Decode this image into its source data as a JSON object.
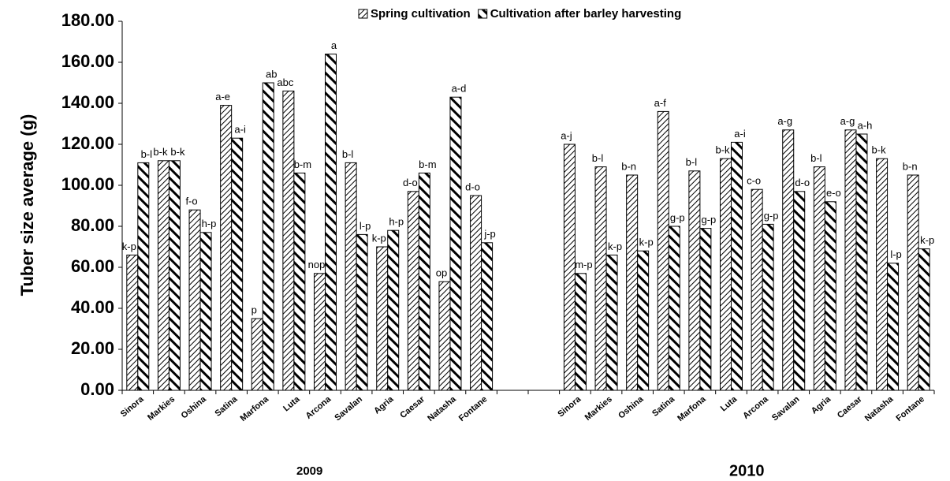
{
  "chart_data": {
    "type": "bar",
    "legend_title": null,
    "y_label": "Tuber size average (g)",
    "group_labels": [
      "2009",
      "2010"
    ],
    "categories": [
      "Sinora",
      "Markies",
      "Oshina",
      "Satina",
      "Marfona",
      "Luta",
      "Arcona",
      "Savalan",
      "Agria",
      "Caesar",
      "Natasha",
      "Fontane",
      null,
      null,
      "Sinora",
      "Markies",
      "Oshina",
      "Satina",
      "Marfona",
      "Luta",
      "Arcona",
      "Savalan",
      "Agria",
      "Caesar",
      "Natasha",
      "Fontane"
    ],
    "series": [
      {
        "name": "Spring cultivation",
        "color": "#000000",
        "values": [
          66,
          112,
          88,
          139,
          35,
          146,
          57,
          111,
          70,
          97,
          53,
          95,
          null,
          null,
          120,
          109,
          105,
          136,
          107,
          113,
          98,
          127,
          109,
          127,
          113,
          105
        ],
        "significance_labels": [
          "k-p",
          "b-k",
          "f-o",
          "a-e",
          "p",
          "abc",
          "nop",
          "b-l",
          "k-p",
          "d-o",
          "op",
          "d-o",
          null,
          null,
          "a-j",
          "b-l",
          "b-n",
          "a-f",
          "b-l",
          "b-k",
          "c-o",
          "a-g",
          "b-l",
          "a-g",
          "b-k",
          "b-n"
        ]
      },
      {
        "name": "Cultivation after barley harvesting",
        "color": "#000000",
        "values": [
          111,
          112,
          77,
          123,
          150,
          106,
          164,
          76,
          78,
          106,
          143,
          72,
          null,
          null,
          57,
          66,
          68,
          80,
          79,
          121,
          81,
          97,
          92,
          125,
          62,
          69
        ],
        "significance_labels": [
          "b-l",
          "b-k",
          "h-p",
          "a-i",
          "ab",
          "b-m",
          "a",
          "l-p",
          "h-p",
          "b-m",
          "a-d",
          "j-p",
          null,
          null,
          "m-p",
          "k-p",
          "k-p",
          "g-p",
          "g-p",
          "a-i",
          "g-p",
          "d-o",
          "e-o",
          "a-h",
          "l-p",
          "k-p"
        ]
      }
    ],
    "ylim": [
      0,
      180
    ],
    "yticks": [
      {
        "value": 0,
        "label": "0.00"
      },
      {
        "value": 20,
        "label": "20.00"
      },
      {
        "value": 40,
        "label": "40.00"
      },
      {
        "value": 60,
        "label": "60.00"
      },
      {
        "value": 80,
        "label": "80.00"
      },
      {
        "value": 100,
        "label": "100.00"
      },
      {
        "value": 120,
        "label": "120.00"
      },
      {
        "value": 140,
        "label": "140.00"
      },
      {
        "value": 160,
        "label": "160.00"
      },
      {
        "value": 180,
        "label": "180.00"
      }
    ],
    "grid": false
  }
}
